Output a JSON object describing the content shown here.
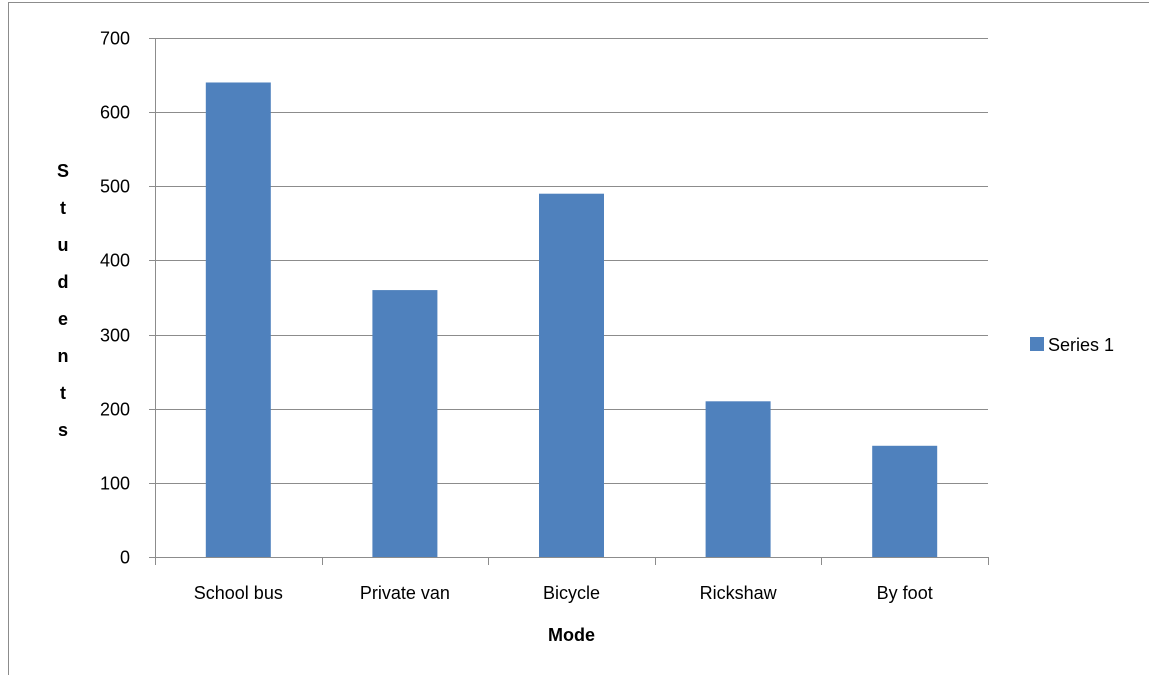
{
  "chart_data": {
    "type": "bar",
    "categories": [
      "School bus",
      "Private van",
      "Bicycle",
      "Rickshaw",
      "By foot"
    ],
    "series": [
      {
        "name": "Series 1",
        "values": [
          640,
          360,
          490,
          210,
          150
        ],
        "color": "#4f81bd"
      }
    ],
    "xlabel": "Mode",
    "ylabel": "Students",
    "ylim": [
      0,
      700
    ],
    "yticks": [
      0,
      100,
      200,
      300,
      400,
      500,
      600,
      700
    ],
    "grid": true,
    "legend": "right"
  },
  "colors": {
    "bar": "#4f81bd",
    "grid": "#8c8c8c",
    "axis": "#8c8c8c"
  }
}
